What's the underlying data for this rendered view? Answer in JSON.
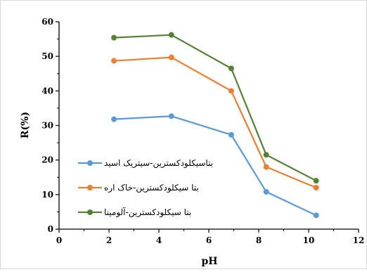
{
  "chart_data": {
    "type": "line",
    "xlabel": "pH",
    "ylabel": "R(%)",
    "xlim": [
      0,
      12
    ],
    "ylim": [
      0,
      60
    ],
    "x_ticks": [
      "0",
      "2",
      "4",
      "6",
      "8",
      "10",
      "12"
    ],
    "y_ticks": [
      "0",
      "10",
      "20",
      "30",
      "40",
      "50",
      "60"
    ],
    "grid": false,
    "legend_position": "left",
    "x": [
      2.2,
      4.5,
      6.9,
      8.3,
      10.3
    ],
    "series": [
      {
        "name": "بتاسیکلودکسترین-سیتریک اسید",
        "color": "#5b9bd5",
        "values": [
          31.8,
          32.7,
          27.3,
          10.8,
          4.0
        ]
      },
      {
        "name": "بتا سیکلودکسترین-خاک اره",
        "color": "#ed7d31",
        "values": [
          48.7,
          49.7,
          40.0,
          18.0,
          12.0
        ]
      },
      {
        "name": "بتا سیکلودکسترین-آلومینا",
        "color": "#548235",
        "values": [
          55.4,
          56.2,
          46.5,
          21.5,
          14.0
        ]
      }
    ]
  }
}
